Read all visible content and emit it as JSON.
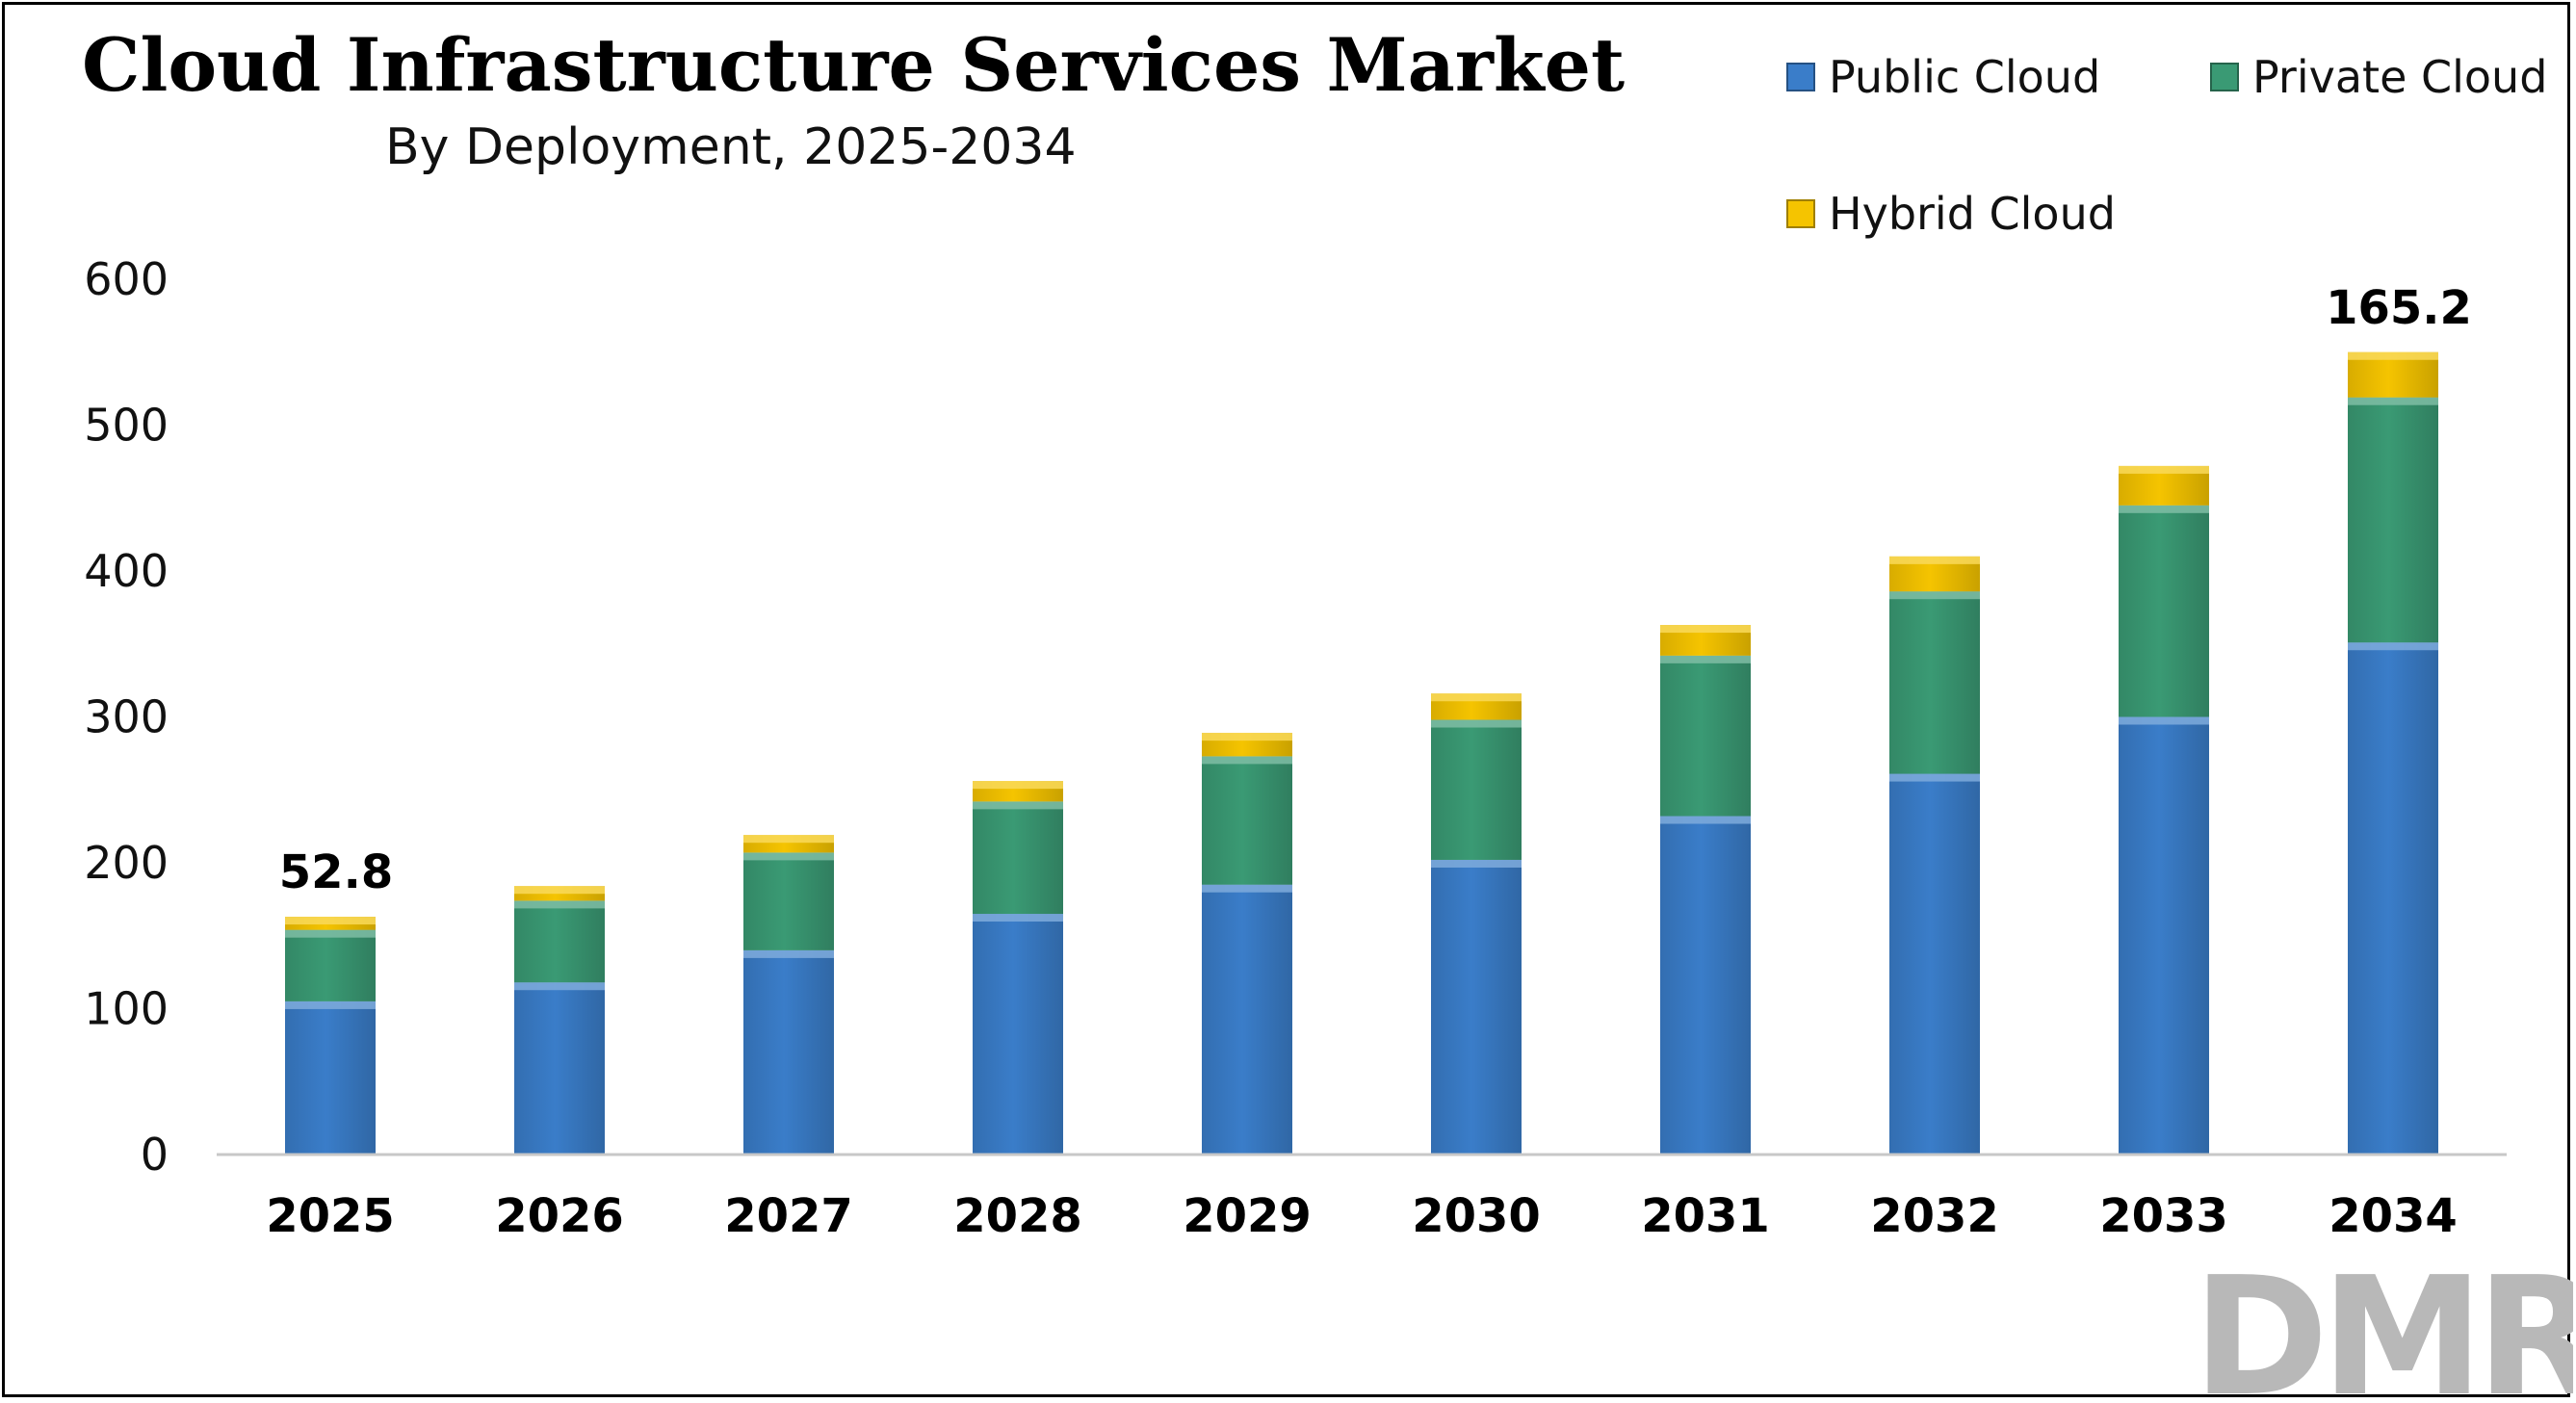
{
  "chart_data": {
    "type": "bar",
    "stacked": true,
    "title": "Cloud Infrastructure Services Market",
    "subtitle": "By Deployment, 2025-2034",
    "categories": [
      "2025",
      "2026",
      "2027",
      "2028",
      "2029",
      "2030",
      "2031",
      "2032",
      "2033",
      "2034"
    ],
    "series": [
      {
        "name": "Public Cloud",
        "color": "#3a7dc9",
        "values": [
          105,
          118,
          140,
          165,
          185,
          202,
          232,
          261,
          300,
          351
        ]
      },
      {
        "name": "Private Cloud",
        "color": "#3a9a74",
        "values": [
          49,
          56,
          67,
          77,
          88,
          96,
          110,
          125,
          145,
          168
        ]
      },
      {
        "name": "Hybrid Cloud",
        "color": "#f5c400",
        "values": [
          9,
          10,
          12,
          14,
          16,
          18,
          21,
          24,
          27,
          31
        ]
      }
    ],
    "data_labels": [
      {
        "category": "2025",
        "text": "52.8"
      },
      {
        "category": "2034",
        "text": "165.2"
      }
    ],
    "yticks": [
      "0",
      "100",
      "200",
      "300",
      "400",
      "500",
      "600"
    ],
    "ylim": [
      0,
      600
    ],
    "grid": false,
    "legend_position": "top-right"
  },
  "logo_text": "DMR"
}
